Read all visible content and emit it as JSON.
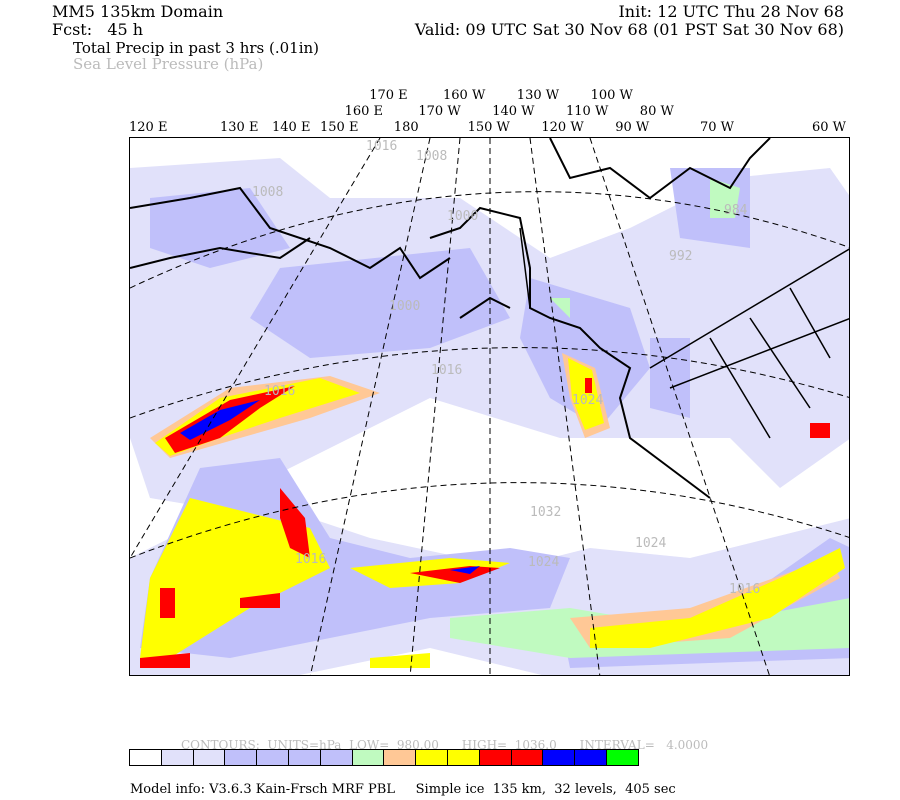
{
  "header": {
    "domain": "MM5 135km Domain",
    "fcst": "Fcst:   45 h",
    "init": "Init: 12 UTC Thu 28 Nov 68",
    "valid": "Valid: 09 UTC Sat 30 Nov 68 (01 PST Sat 30 Nov 68)",
    "field1": "Total Precip in past 3 hrs (.01in)",
    "field2": "Sea Level Pressure (hPa)"
  },
  "longitude_labels": [
    "120 E",
    "130 E",
    "140 E",
    "150 E",
    "160 E",
    "170 E",
    "180",
    "170 W",
    "160 W",
    "150 W",
    "140 W",
    "130 W",
    "120 W",
    "110 W",
    "100 W",
    "90 W",
    "80 W",
    "70 W",
    "60 W"
  ],
  "contour_labels": [
    "1016",
    "1008",
    "1008",
    "1000",
    "984",
    "992",
    "1000",
    "1016",
    "1016",
    "1024",
    "1032",
    "1024",
    "1016",
    "1024",
    "1016"
  ],
  "contour_info": "CONTOURS:  UNITS=hPa  LOW=  980.00      HIGH=  1036.0      INTERVAL=   4.0000",
  "colorbar": [
    "#ffffff",
    "#e1e1fa",
    "#e1e1fa",
    "#c0c0fa",
    "#c0c0fa",
    "#c0c0fa",
    "#c0c0fa",
    "#c0fac0",
    "#ffc896",
    "#ffff00",
    "#ffff00",
    "#ff0000",
    "#ff0000",
    "#0000ff",
    "#0000ff",
    "#00ff00"
  ],
  "model_info": "Model info: V3.6.3 Kain-Frsch MRF PBL     Simple ice  135 km,  32 levels,  405 sec"
}
